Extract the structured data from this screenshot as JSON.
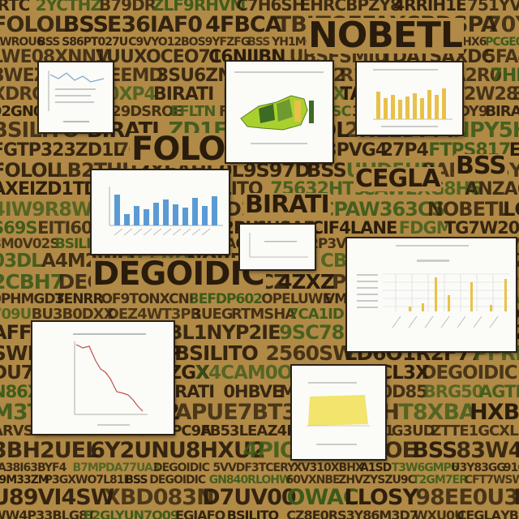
{
  "background_words": [
    "NOBETL",
    "BSILITO",
    "FOLOL",
    "DEGOIDIC",
    "CEGLA",
    "BIRATI",
    "BSS"
  ],
  "colors": {
    "background": "#b08a46",
    "dark_ink": "#2a1c0c",
    "green_ink": "#3c5a1a",
    "tile": "#fbfbf8",
    "blue_bars": "#5b9bd5",
    "gold_bars": "#e8c14a",
    "red_line": "#c0504d",
    "lime": "#a9d12e",
    "yellow_fill": "#f2e46c"
  }
}
